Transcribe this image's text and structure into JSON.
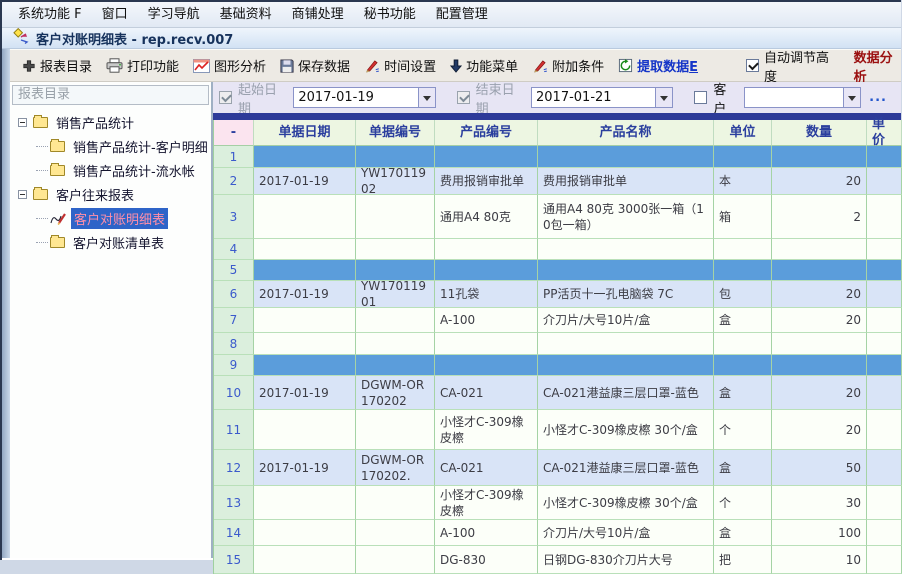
{
  "menu_bar": {
    "items": [
      "系统功能 F",
      "窗口",
      "学习导航",
      "基础资料",
      "商铺处理",
      "秘书功能",
      "配置管理"
    ]
  },
  "title_bar": {
    "title": "客户对账明细表 - rep.recv.007"
  },
  "toolbar": {
    "buttons": [
      {
        "key": "report-catalog",
        "label": "报表目录",
        "icon": "plus-icon"
      },
      {
        "key": "print",
        "label": "打印功能",
        "icon": "printer-icon"
      },
      {
        "key": "graph-analysis",
        "label": "图形分析",
        "icon": "chart-icon"
      },
      {
        "key": "save-data",
        "label": "保存数据",
        "icon": "save-icon"
      },
      {
        "key": "time-settings",
        "label": "时间设置",
        "icon": "pen-icon"
      },
      {
        "key": "function-menu",
        "label": "功能菜单",
        "icon": "down-arrow-icon"
      },
      {
        "key": "extra-conditions",
        "label": "附加条件",
        "icon": "pen-icon"
      },
      {
        "key": "extract-data",
        "label": "提取数据E",
        "icon": "extract-icon",
        "accent": true,
        "underline_last": true
      }
    ],
    "auto_height": {
      "label": "自动调节高度",
      "checked": true
    },
    "data_analysis_label": "数据分析"
  },
  "filters": {
    "start_date": {
      "key": "start-date",
      "label": "起始日期",
      "value": "2017-01-19",
      "checked": true,
      "disabled": true
    },
    "end_date": {
      "key": "end-date",
      "label": "结束日期",
      "value": "2017-01-21",
      "checked": true,
      "disabled": true
    },
    "customer": {
      "key": "customer",
      "label": "客户",
      "value": "",
      "checked": false,
      "disabled": false,
      "more_label": "..."
    }
  },
  "sidebar": {
    "header": "报表目录",
    "tree": [
      {
        "label": "销售产品统计",
        "level": 0,
        "expanded": true,
        "icon": "folder-icon",
        "selected": false
      },
      {
        "label": "销售产品统计-客户明细",
        "level": 1,
        "expanded": false,
        "icon": "folder-icon",
        "selected": false
      },
      {
        "label": "销售产品统计-流水帐",
        "level": 1,
        "expanded": false,
        "icon": "folder-icon",
        "selected": false
      },
      {
        "label": "客户往来报表",
        "level": 0,
        "expanded": true,
        "icon": "folder-icon",
        "selected": false
      },
      {
        "label": "客户对账明细表",
        "level": 1,
        "expanded": false,
        "icon": "active-report-icon",
        "selected": true
      },
      {
        "label": "客户对账清单表",
        "level": 1,
        "expanded": false,
        "icon": "folder-icon",
        "selected": false
      }
    ]
  },
  "table": {
    "columns": [
      "-",
      "单据日期",
      "单据编号",
      "产品编号",
      "产品名称",
      "单位",
      "数量",
      "单价"
    ],
    "rows": [
      {
        "num": "1",
        "type": "group",
        "cells": [
          "",
          "",
          "",
          "",
          "",
          "",
          ""
        ]
      },
      {
        "num": "2",
        "type": "first",
        "cells": [
          "2017-01-19",
          "YW17011902",
          "费用报销审批单",
          "费用报销审批单",
          "本",
          "20",
          ""
        ]
      },
      {
        "num": "3",
        "type": "normal",
        "cells": [
          "",
          "",
          "通用A4 80克",
          "通用A4 80克 3000张一箱（10包一箱）",
          "箱",
          "2",
          ""
        ]
      },
      {
        "num": "4",
        "type": "normal",
        "cells": [
          "",
          "",
          "",
          "",
          "",
          "",
          ""
        ]
      },
      {
        "num": "5",
        "type": "group",
        "cells": [
          "",
          "",
          "",
          "",
          "",
          "",
          ""
        ]
      },
      {
        "num": "6",
        "type": "first",
        "cells": [
          "2017-01-19",
          "YW17011901",
          "11孔袋",
          "PP活页十一孔电脑袋 7C",
          "包",
          "20",
          ""
        ]
      },
      {
        "num": "7",
        "type": "normal",
        "cells": [
          "",
          "",
          "A-100",
          "介刀片/大号10片/盒",
          "盒",
          "20",
          ""
        ]
      },
      {
        "num": "8",
        "type": "normal",
        "cells": [
          "",
          "",
          "",
          "",
          "",
          "",
          ""
        ]
      },
      {
        "num": "9",
        "type": "group",
        "cells": [
          "",
          "",
          "",
          "",
          "",
          "",
          ""
        ]
      },
      {
        "num": "10",
        "type": "first",
        "cells": [
          "2017-01-19",
          "DGWM-OR170202",
          "CA-021",
          "CA-021港益康三层口罩-蓝色",
          "盒",
          "20",
          ""
        ]
      },
      {
        "num": "11",
        "type": "normal",
        "cells": [
          "",
          "",
          "小怪才C-309橡皮檫",
          "小怪才C-309橡皮檫 30个/盒",
          "个",
          "20",
          ""
        ]
      },
      {
        "num": "12",
        "type": "first",
        "cells": [
          "2017-01-19",
          "DGWM-OR170202.",
          "CA-021",
          "CA-021港益康三层口罩-蓝色",
          "盒",
          "50",
          ""
        ]
      },
      {
        "num": "13",
        "type": "normal",
        "cells": [
          "",
          "",
          "小怪才C-309橡皮檫",
          "小怪才C-309橡皮檫 30个/盒",
          "个",
          "30",
          ""
        ]
      },
      {
        "num": "14",
        "type": "normal",
        "cells": [
          "",
          "",
          "A-100",
          "介刀片/大号10片/盒",
          "盒",
          "100",
          ""
        ]
      },
      {
        "num": "15",
        "type": "normal",
        "cells": [
          "",
          "",
          "DG-830",
          "日钢DG-830介刀片大号",
          "把",
          "10",
          ""
        ]
      }
    ]
  },
  "colors": {
    "group_row": "#5B9DDB",
    "first_row": "#D9E4F7",
    "data_row": "#FCFFF9",
    "row_number_bg": "#DBEFDD",
    "header_bg": "#EDF6E2",
    "corner_bg": "#FBE4EF",
    "grid_line": "#A5D3A5",
    "navy_strip": "#2D3A99",
    "filter_bg": "#E7E5F4",
    "selected_tree_bg": "#2E64C8",
    "selected_tree_text": "#FF8FA8",
    "accent_blue": "#1535C8",
    "accent_maroon": "#9B1010"
  }
}
